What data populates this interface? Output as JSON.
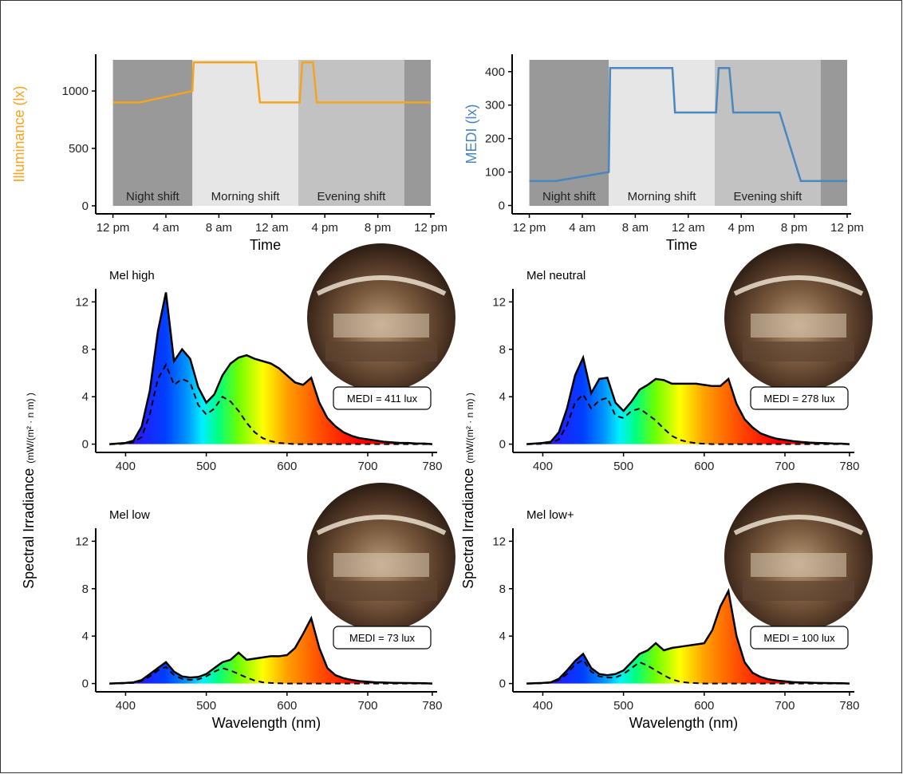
{
  "chart_data": [
    {
      "type": "line",
      "ylabel": "Illuminance (lx)",
      "xlabel": "Time",
      "color": "#f5a41f",
      "x": [
        0,
        2,
        6,
        6.1,
        10.8,
        11.1,
        14.1,
        14.3,
        15.1,
        15.4,
        24
      ],
      "values": [
        900,
        900,
        1000,
        1250,
        1250,
        900,
        900,
        1250,
        1250,
        900,
        900
      ],
      "xlim": [
        -1.3,
        24.3
      ],
      "ylim": [
        -70,
        1320
      ],
      "yticks": [
        0,
        500,
        1000
      ],
      "xticks": [
        {
          "value": 0,
          "label": "12 pm"
        },
        {
          "value": 4,
          "label": "4 am"
        },
        {
          "value": 8,
          "label": "8 am"
        },
        {
          "value": 12,
          "label": "12 am"
        },
        {
          "value": 16,
          "label": "4 pm"
        },
        {
          "value": 20,
          "label": "8 pm"
        },
        {
          "value": 24,
          "label": "12 pm"
        }
      ],
      "shifts": [
        {
          "label": "Night shift",
          "start": 0,
          "end": 6,
          "color": "#999999"
        },
        {
          "label": "Morning shift",
          "start": 6,
          "end": 14,
          "color": "#e6e6e6"
        },
        {
          "label": "Evening shift",
          "start": 14,
          "end": 22,
          "color": "#c2c2c2"
        },
        {
          "start": 22,
          "end": 24,
          "color": "#999999"
        }
      ]
    },
    {
      "type": "line",
      "ylabel": "MEDI (lx)",
      "xlabel": "Time",
      "color": "#4a86c0",
      "x": [
        0,
        2,
        6,
        6.1,
        10.8,
        11.0,
        14.1,
        14.3,
        15.1,
        15.4,
        18.9,
        20.5,
        24
      ],
      "values": [
        73,
        73,
        100,
        411,
        411,
        278,
        278,
        411,
        411,
        278,
        278,
        73,
        73
      ],
      "xlim": [
        -1.3,
        24.3
      ],
      "ylim": [
        -25,
        452
      ],
      "yticks": [
        0,
        100,
        200,
        300,
        400
      ],
      "xticks": [
        {
          "value": 0,
          "label": "12 pm"
        },
        {
          "value": 4,
          "label": "4 am"
        },
        {
          "value": 8,
          "label": "8 am"
        },
        {
          "value": 12,
          "label": "12 am"
        },
        {
          "value": 16,
          "label": "4 pm"
        },
        {
          "value": 20,
          "label": "8 pm"
        },
        {
          "value": 24,
          "label": "12 pm"
        }
      ],
      "shifts": [
        {
          "label": "Night shift",
          "start": 0,
          "end": 6,
          "color": "#999999"
        },
        {
          "label": "Morning shift",
          "start": 6,
          "end": 14,
          "color": "#e6e6e6"
        },
        {
          "label": "Evening shift",
          "start": 14,
          "end": 22,
          "color": "#c2c2c2"
        },
        {
          "start": 22,
          "end": 24,
          "color": "#999999"
        }
      ]
    },
    {
      "type": "area",
      "title": "Mel high",
      "annotation": "MEDI = 411 lux",
      "ylabel": "Spectral Irradiance",
      "ylabel_unit": "(mW/(m² · n m) )",
      "x": [
        380,
        390,
        400,
        410,
        420,
        430,
        440,
        450,
        460,
        470,
        480,
        490,
        500,
        510,
        520,
        530,
        540,
        550,
        560,
        570,
        580,
        590,
        600,
        610,
        620,
        630,
        640,
        650,
        660,
        670,
        680,
        690,
        700,
        710,
        720,
        730,
        740,
        750,
        760,
        770,
        780
      ],
      "series": [
        {
          "color": "#000000",
          "values": [
            0,
            0.05,
            0.1,
            0.3,
            1.5,
            4.5,
            9.5,
            12.8,
            7.0,
            8.0,
            7.2,
            4.8,
            3.5,
            4.2,
            5.8,
            6.8,
            7.3,
            7.5,
            7.2,
            7.0,
            6.8,
            6.4,
            5.8,
            5.2,
            5.0,
            5.6,
            3.5,
            2.2,
            1.5,
            1.0,
            0.7,
            0.5,
            0.4,
            0.3,
            0.2,
            0.15,
            0.1,
            0.1,
            0.05,
            0.05,
            0
          ]
        },
        {
          "color": "#000000",
          "dashed": true,
          "values": [
            0,
            0,
            0.05,
            0.15,
            0.6,
            2.5,
            5.5,
            6.7,
            5.0,
            5.5,
            5.2,
            3.3,
            2.5,
            3.0,
            4.0,
            3.6,
            2.8,
            1.8,
            1.0,
            0.5,
            0.25,
            0.1,
            0.05,
            0,
            0,
            0,
            0,
            0,
            0,
            0,
            0,
            0,
            0,
            0,
            0,
            0,
            0,
            0,
            0,
            0,
            0
          ]
        }
      ],
      "xlim": [
        363,
        786
      ],
      "ylim": [
        -0.7,
        13.1
      ],
      "xticks": [
        400,
        500,
        600,
        700,
        780
      ],
      "yticks": [
        0,
        4,
        8,
        12
      ]
    },
    {
      "type": "area",
      "title": "Mel neutral",
      "annotation": "MEDI = 278 lux",
      "ylabel": "Spectral Irradiance",
      "ylabel_unit": "(mW/(m² · n m) )",
      "x": [
        380,
        390,
        400,
        410,
        420,
        430,
        440,
        450,
        460,
        470,
        480,
        490,
        500,
        510,
        520,
        530,
        540,
        550,
        560,
        570,
        580,
        590,
        600,
        610,
        620,
        630,
        640,
        650,
        660,
        670,
        680,
        690,
        700,
        710,
        720,
        730,
        740,
        750,
        760,
        770,
        780
      ],
      "series": [
        {
          "color": "#000000",
          "values": [
            0,
            0.05,
            0.1,
            0.2,
            1.0,
            3.0,
            5.8,
            7.3,
            4.3,
            5.5,
            5.6,
            3.5,
            2.8,
            3.6,
            4.6,
            5.0,
            5.5,
            5.4,
            5.1,
            5.1,
            5.1,
            5.1,
            5.0,
            4.9,
            4.9,
            5.5,
            3.4,
            2.1,
            1.4,
            0.9,
            0.65,
            0.45,
            0.35,
            0.25,
            0.18,
            0.13,
            0.1,
            0.08,
            0.05,
            0.04,
            0
          ]
        },
        {
          "color": "#000000",
          "dashed": true,
          "values": [
            0,
            0,
            0.03,
            0.1,
            0.4,
            1.6,
            3.5,
            4.2,
            3.0,
            3.7,
            3.9,
            2.4,
            2.2,
            2.8,
            3.0,
            2.5,
            2.0,
            1.3,
            0.7,
            0.35,
            0.18,
            0.08,
            0.03,
            0,
            0,
            0,
            0,
            0,
            0,
            0,
            0,
            0,
            0,
            0,
            0,
            0,
            0,
            0,
            0,
            0,
            0
          ]
        }
      ],
      "xlim": [
        363,
        786
      ],
      "ylim": [
        -0.7,
        13.1
      ],
      "xticks": [
        400,
        500,
        600,
        700,
        780
      ],
      "yticks": [
        0,
        4,
        8,
        12
      ]
    },
    {
      "type": "area",
      "title": "Mel low",
      "annotation": "MEDI = 73 lux",
      "xlabel": "Wavelength (nm)",
      "x": [
        380,
        390,
        400,
        410,
        420,
        430,
        440,
        450,
        460,
        470,
        480,
        490,
        500,
        510,
        520,
        530,
        540,
        550,
        560,
        570,
        580,
        590,
        600,
        610,
        620,
        630,
        640,
        650,
        660,
        670,
        680,
        690,
        700,
        710,
        720,
        730,
        740,
        750,
        760,
        770,
        780
      ],
      "series": [
        {
          "color": "#000000",
          "values": [
            0,
            0.02,
            0.05,
            0.1,
            0.3,
            0.8,
            1.3,
            1.8,
            1.0,
            0.6,
            0.5,
            0.55,
            0.8,
            1.3,
            1.8,
            2.0,
            2.6,
            2.0,
            2.1,
            2.2,
            2.3,
            2.3,
            2.4,
            3.0,
            4.2,
            5.5,
            3.0,
            1.3,
            0.7,
            0.45,
            0.3,
            0.2,
            0.15,
            0.1,
            0.08,
            0.06,
            0.05,
            0.04,
            0.03,
            0.02,
            0
          ]
        },
        {
          "color": "#000000",
          "dashed": true,
          "values": [
            0,
            0,
            0.02,
            0.05,
            0.2,
            0.6,
            1.1,
            1.4,
            0.7,
            0.4,
            0.3,
            0.35,
            0.6,
            1.0,
            1.3,
            1.1,
            0.8,
            0.5,
            0.25,
            0.1,
            0.05,
            0.02,
            0,
            0,
            0,
            0,
            0,
            0,
            0,
            0,
            0,
            0,
            0,
            0,
            0,
            0,
            0,
            0,
            0,
            0,
            0
          ]
        }
      ],
      "xlim": [
        363,
        786
      ],
      "ylim": [
        -0.7,
        13.1
      ],
      "xticks": [
        400,
        500,
        600,
        700,
        780
      ],
      "yticks": [
        0,
        4,
        8,
        12
      ]
    },
    {
      "type": "area",
      "title": "Mel low+",
      "annotation": "MEDI = 100 lux",
      "xlabel": "Wavelength (nm)",
      "x": [
        380,
        390,
        400,
        410,
        420,
        430,
        440,
        450,
        460,
        470,
        480,
        490,
        500,
        510,
        520,
        530,
        540,
        550,
        560,
        570,
        580,
        590,
        600,
        610,
        620,
        630,
        640,
        650,
        660,
        670,
        680,
        690,
        700,
        710,
        720,
        730,
        740,
        750,
        760,
        770,
        780
      ],
      "series": [
        {
          "color": "#000000",
          "values": [
            0,
            0.02,
            0.05,
            0.1,
            0.4,
            1.1,
            1.9,
            2.5,
            1.3,
            0.8,
            0.7,
            0.8,
            1.1,
            1.8,
            2.5,
            2.8,
            3.4,
            2.8,
            3.0,
            3.1,
            3.2,
            3.3,
            3.4,
            4.5,
            6.5,
            7.8,
            4.0,
            1.8,
            0.9,
            0.55,
            0.35,
            0.25,
            0.18,
            0.12,
            0.09,
            0.07,
            0.05,
            0.04,
            0.03,
            0.02,
            0
          ]
        },
        {
          "color": "#000000",
          "dashed": true,
          "values": [
            0,
            0,
            0.02,
            0.07,
            0.3,
            0.8,
            1.6,
            2.0,
            1.0,
            0.6,
            0.5,
            0.5,
            0.8,
            1.3,
            1.8,
            1.5,
            1.1,
            0.7,
            0.35,
            0.15,
            0.07,
            0.03,
            0,
            0,
            0,
            0,
            0,
            0,
            0,
            0,
            0,
            0,
            0,
            0,
            0,
            0,
            0,
            0,
            0,
            0,
            0
          ]
        }
      ],
      "xlim": [
        363,
        786
      ],
      "ylim": [
        -0.7,
        13.1
      ],
      "xticks": [
        400,
        500,
        600,
        700,
        780
      ],
      "yticks": [
        0,
        4,
        8,
        12
      ]
    }
  ]
}
